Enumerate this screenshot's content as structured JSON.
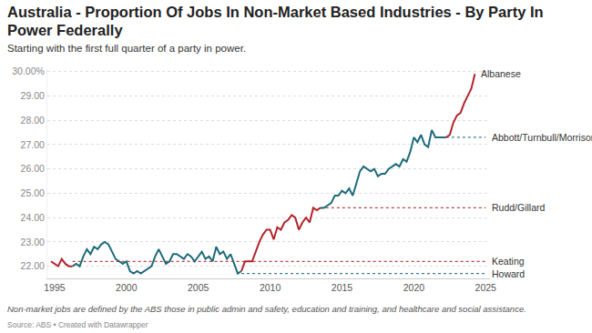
{
  "chart_data": {
    "type": "line",
    "title": "Australia - Proportion Of Jobs In Non-Market Based Industries - By Party In Power Federally",
    "subtitle": "Starting with the first full quarter of a party in power.",
    "note": "Non-market jobs are defined by the ABS those in public admin and safety, education and training, and healthcare and social assistance.",
    "source": "Source: ABS • Created with Datawrapper",
    "xlim": [
      1994.5,
      2025.3
    ],
    "xticks": [
      1995,
      2000,
      2005,
      2010,
      2015,
      2020,
      2025
    ],
    "ylim": [
      21.5,
      30.1
    ],
    "yticks": [
      {
        "value": 22,
        "label": "22.00"
      },
      {
        "value": 23,
        "label": "23.00"
      },
      {
        "value": 24,
        "label": "24.00"
      },
      {
        "value": 25,
        "label": "25.00"
      },
      {
        "value": 26,
        "label": "26.00"
      },
      {
        "value": 27,
        "label": "27.00"
      },
      {
        "value": 28,
        "label": "28.00"
      },
      {
        "value": 29,
        "label": "29.00"
      },
      {
        "value": 30,
        "label": "30.00%"
      }
    ],
    "grid": true,
    "series": [
      {
        "name": "Keating",
        "color": "#b3242b",
        "x": [
          1994.75,
          1995,
          1995.25,
          1995.5,
          1995.75,
          1996,
          1996.25
        ],
        "values": [
          22.2,
          22.1,
          22.0,
          22.3,
          22.1,
          22.0,
          22.0
        ]
      },
      {
        "name": "Howard",
        "color": "#1d6b7a",
        "x": [
          1996.25,
          1996.5,
          1996.75,
          1997,
          1997.25,
          1997.5,
          1997.75,
          1998,
          1998.25,
          1998.5,
          1998.75,
          1999,
          1999.25,
          1999.5,
          1999.75,
          2000,
          2000.25,
          2000.5,
          2000.75,
          2001,
          2001.25,
          2001.5,
          2001.75,
          2002,
          2002.25,
          2002.5,
          2002.75,
          2003,
          2003.25,
          2003.5,
          2003.75,
          2004,
          2004.25,
          2004.5,
          2004.75,
          2005,
          2005.25,
          2005.5,
          2005.75,
          2006,
          2006.25,
          2006.5,
          2006.75,
          2007,
          2007.25,
          2007.5,
          2007.75,
          2008
        ],
        "values": [
          22.0,
          22.1,
          22.0,
          22.4,
          22.7,
          22.5,
          22.8,
          22.7,
          22.9,
          23.0,
          22.9,
          22.6,
          22.3,
          22.2,
          22.1,
          22.2,
          21.8,
          21.7,
          21.8,
          21.7,
          21.8,
          21.9,
          22.0,
          22.4,
          22.7,
          22.4,
          22.1,
          22.2,
          22.5,
          22.5,
          22.4,
          22.3,
          22.5,
          22.4,
          22.2,
          22.4,
          22.6,
          22.3,
          22.4,
          22.2,
          22.8,
          22.5,
          22.6,
          22.3,
          22.5,
          22.1,
          21.7,
          21.8
        ]
      },
      {
        "name": "Rudd/Gillard",
        "color": "#b3242b",
        "x": [
          2008,
          2008.25,
          2008.5,
          2008.75,
          2009,
          2009.25,
          2009.5,
          2009.75,
          2010,
          2010.25,
          2010.5,
          2010.75,
          2011,
          2011.25,
          2011.5,
          2011.75,
          2012,
          2012.25,
          2012.5,
          2012.75,
          2013,
          2013.25,
          2013.5
        ],
        "values": [
          21.8,
          22.2,
          22.2,
          22.2,
          22.6,
          23.0,
          23.3,
          23.5,
          23.5,
          23.1,
          23.6,
          23.5,
          23.8,
          23.9,
          24.1,
          24.0,
          23.5,
          23.8,
          24.0,
          23.8,
          24.4,
          24.3,
          24.4
        ]
      },
      {
        "name": "Abbott/Turnbull/Morrison",
        "color": "#1d6b7a",
        "x": [
          2013.5,
          2013.75,
          2014,
          2014.25,
          2014.5,
          2014.75,
          2015,
          2015.25,
          2015.5,
          2015.75,
          2016,
          2016.25,
          2016.5,
          2016.75,
          2017,
          2017.25,
          2017.5,
          2017.75,
          2018,
          2018.25,
          2018.5,
          2018.75,
          2019,
          2019.25,
          2019.5,
          2019.75,
          2020,
          2020.25,
          2020.5,
          2020.75,
          2021,
          2021.25,
          2021.5,
          2021.75,
          2022,
          2022.25
        ],
        "values": [
          24.4,
          24.4,
          24.5,
          24.6,
          24.9,
          24.9,
          25.1,
          25.0,
          25.2,
          24.9,
          25.4,
          25.9,
          26.1,
          26.0,
          25.9,
          26.0,
          25.7,
          25.8,
          25.8,
          26.0,
          26.1,
          26.2,
          26.1,
          26.4,
          26.3,
          26.7,
          27.3,
          27.1,
          27.4,
          27.0,
          26.9,
          27.6,
          27.3,
          27.3,
          27.3,
          27.3
        ]
      },
      {
        "name": "Albanese",
        "color": "#b3242b",
        "x": [
          2022.25,
          2022.5,
          2022.75,
          2023,
          2023.25,
          2023.5,
          2023.75,
          2024,
          2024.25
        ],
        "values": [
          27.3,
          27.4,
          27.9,
          28.2,
          28.3,
          28.7,
          29.0,
          29.3,
          29.9
        ]
      }
    ],
    "level_lines": [
      {
        "name": "Keating",
        "color": "#b3242b",
        "line_style": "dotted",
        "x": [
          1996.25,
          2025
        ],
        "values": [
          22.2,
          22.2
        ]
      },
      {
        "name": "Howard",
        "color": "#1d6b7a",
        "line_style": "dotted",
        "x": [
          2008,
          2025
        ],
        "values": [
          21.7,
          21.7
        ]
      },
      {
        "name": "Rudd/Gillard",
        "color": "#b3242b",
        "line_style": "dotted",
        "x": [
          2013.5,
          2025
        ],
        "values": [
          24.4,
          24.4
        ]
      },
      {
        "name": "Abbott/Turnbull/Morrison",
        "color": "#1d6b7a",
        "line_style": "dotted",
        "x": [
          2022.25,
          2025
        ],
        "values": [
          27.3,
          27.3
        ]
      }
    ]
  }
}
